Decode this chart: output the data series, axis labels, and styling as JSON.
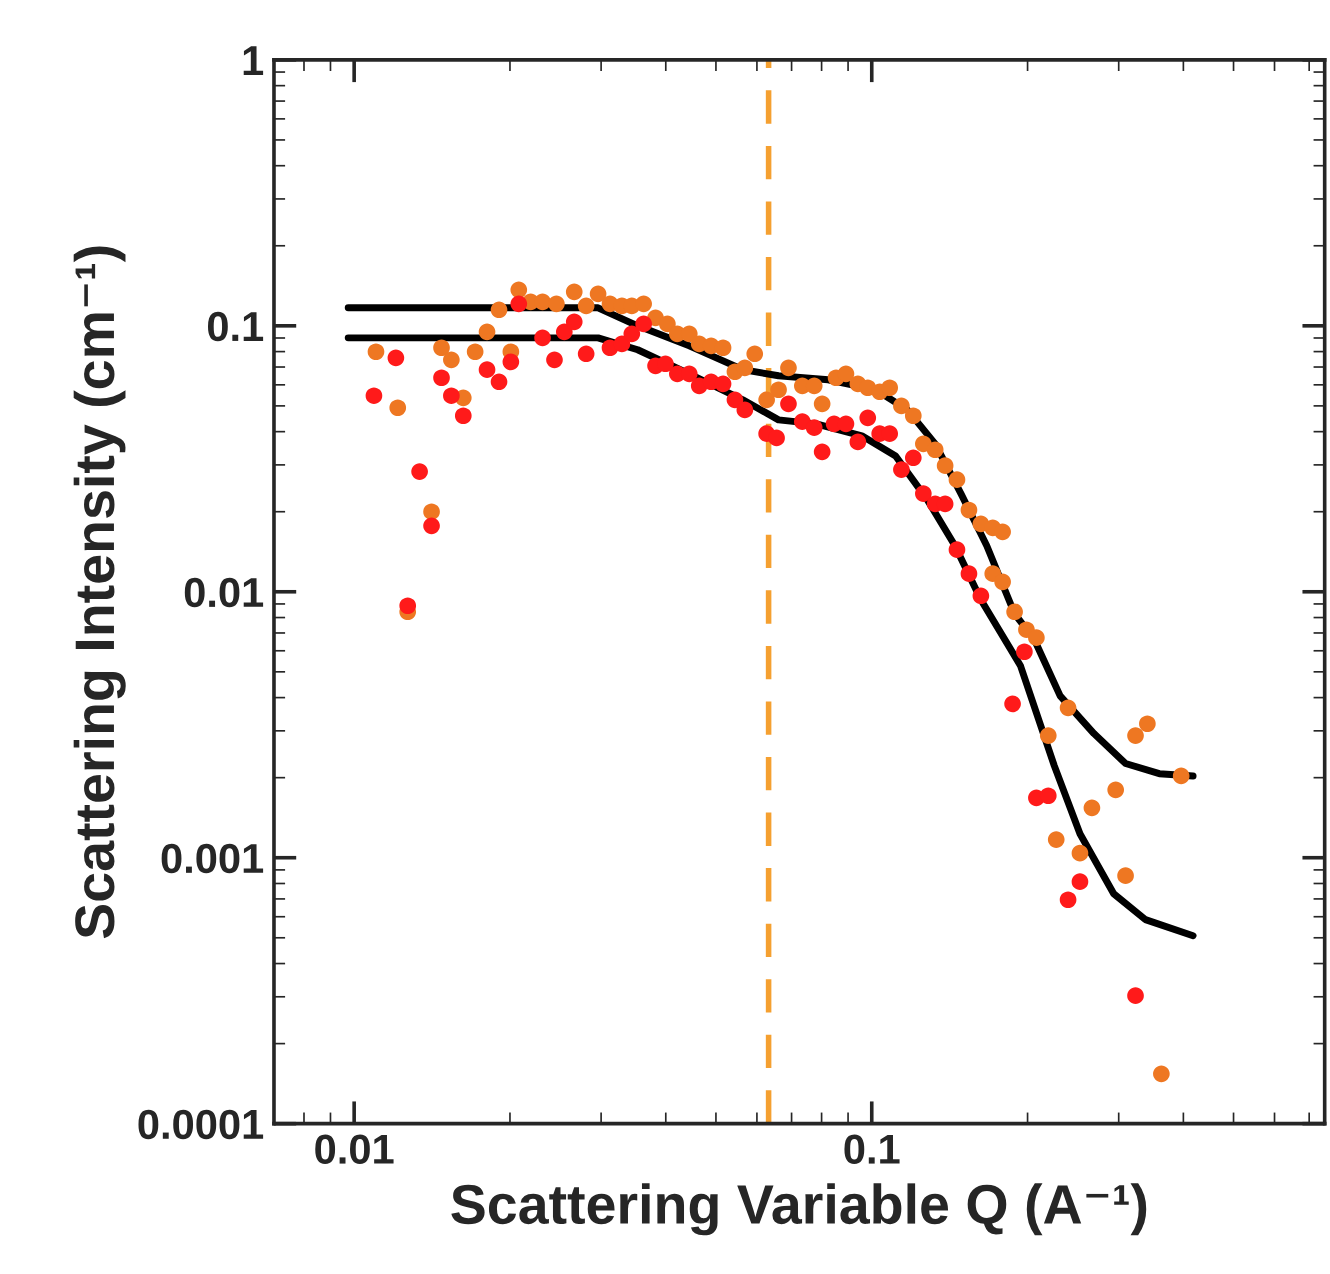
{
  "chart_data": {
    "type": "scatter",
    "xlabel": "Scattering Variable Q (A⁻¹)",
    "ylabel": "Scattering Intensity (cm⁻¹)",
    "log": "xy",
    "grid": false,
    "legend": false,
    "xlim": [
      0.007,
      0.75
    ],
    "ylim": [
      0.0001,
      1
    ],
    "xticks": [
      0.01,
      0.1
    ],
    "yticks": [
      1,
      0.1,
      0.01,
      0.001,
      0.0001
    ],
    "ref_lines": [
      {
        "axis": "x",
        "value": 0.0632,
        "color": "#f5a030",
        "line_style": "dashed"
      }
    ],
    "series": [
      {
        "color": "#ee7722",
        "marker": "circle",
        "x": [
          0.01102,
          0.01214,
          0.01269,
          0.01411,
          0.01475,
          0.01541,
          0.01625,
          0.01713,
          0.01806,
          0.01905,
          0.02008,
          0.0208,
          0.02193,
          0.02312,
          0.02459,
          0.02662,
          0.02807,
          0.0296,
          0.03121,
          0.03291,
          0.03439,
          0.03625,
          0.03822,
          0.04029,
          0.04211,
          0.04441,
          0.04642,
          0.04894,
          0.05161,
          0.05441,
          0.05686,
          0.05942,
          0.06265,
          0.06606,
          0.06904,
          0.07343,
          0.07742,
          0.0802,
          0.08532,
          0.08916,
          0.09401,
          0.09824,
          0.1036,
          0.1083,
          0.1141,
          0.1203,
          0.1258,
          0.1326,
          0.1386,
          0.1461,
          0.1541,
          0.1625,
          0.1713,
          0.179,
          0.1713,
          0.179,
          0.1888,
          0.199,
          0.208,
          0.2395,
          0.2193,
          0.3233,
          0.3408,
          0.3961,
          0.296,
          0.2663,
          0.2272,
          0.2525,
          0.3093,
          0.3627
        ],
        "values": [
          0.0799,
          0.0492,
          0.00841,
          0.02,
          0.0827,
          0.0745,
          0.0536,
          0.0799,
          0.0949,
          0.1149,
          0.0799,
          0.1366,
          0.1231,
          0.1231,
          0.121,
          0.1342,
          0.1189,
          0.1319,
          0.121,
          0.1189,
          0.1189,
          0.121,
          0.1072,
          0.1017,
          0.0933,
          0.0933,
          0.0855,
          0.0841,
          0.0827,
          0.0672,
          0.0695,
          0.0785,
          0.0527,
          0.0575,
          0.0695,
          0.0595,
          0.0595,
          0.0509,
          0.0638,
          0.066,
          0.0605,
          0.0585,
          0.0565,
          0.0585,
          0.05,
          0.0459,
          0.036,
          0.0342,
          0.0298,
          0.0264,
          0.0203,
          0.018,
          0.0174,
          0.0168,
          0.0117,
          0.0109,
          0.00841,
          0.0072,
          0.00672,
          0.00366,
          0.00288,
          0.00288,
          0.00319,
          0.00203,
          0.0018,
          0.00154,
          0.00117,
          0.00104,
          0.000856,
          0.000154
        ]
      },
      {
        "color": "#ff1a1a",
        "marker": "circle",
        "x": [
          0.01092,
          0.01204,
          0.01269,
          0.01338,
          0.01411,
          0.01475,
          0.01541,
          0.01625,
          0.01806,
          0.01905,
          0.02008,
          0.0208,
          0.02312,
          0.02438,
          0.02547,
          0.02662,
          0.02807,
          0.03121,
          0.03291,
          0.03439,
          0.03625,
          0.03822,
          0.03994,
          0.04211,
          0.04441,
          0.04642,
          0.04894,
          0.05161,
          0.05441,
          0.05686,
          0.06265,
          0.06548,
          0.06904,
          0.07343,
          0.07742,
          0.0802,
          0.08457,
          0.08916,
          0.09401,
          0.09824,
          0.1036,
          0.1083,
          0.1141,
          0.1203,
          0.1258,
          0.1326,
          0.1386,
          0.1461,
          0.1541,
          0.1625,
          0.1972,
          0.1871,
          0.208,
          0.2193,
          0.2525,
          0.2395,
          0.3233
        ],
        "values": [
          0.0546,
          0.0758,
          0.00886,
          0.0283,
          0.0177,
          0.0638,
          0.0546,
          0.0459,
          0.0684,
          0.0616,
          0.0732,
          0.121,
          0.0901,
          0.0745,
          0.0949,
          0.1035,
          0.0785,
          0.0827,
          0.0855,
          0.0933,
          0.1017,
          0.0707,
          0.072,
          0.066,
          0.066,
          0.0595,
          0.0616,
          0.0605,
          0.0527,
          0.0483,
          0.0393,
          0.0379,
          0.0509,
          0.0436,
          0.0414,
          0.0336,
          0.0428,
          0.0428,
          0.0366,
          0.0451,
          0.0393,
          0.0393,
          0.0288,
          0.0319,
          0.0234,
          0.0214,
          0.0214,
          0.0144,
          0.0117,
          0.00966,
          0.00595,
          0.00379,
          0.00168,
          0.00171,
          0.000813,
          0.000695,
          0.000303
        ]
      },
      {
        "type": "line",
        "color": "#000000",
        "line_style": "solid",
        "x": [
          0.00974,
          0.0296,
          0.0353,
          0.04441,
          0.05636,
          0.06606,
          0.08236,
          0.1018,
          0.1172,
          0.1326,
          0.1487,
          0.1668,
          0.1888,
          0.2062,
          0.2312,
          0.2687,
          0.3093,
          0.3594,
          0.4176
        ],
        "values": [
          0.1169,
          0.1169,
          0.1,
          0.0841,
          0.0684,
          0.0649,
          0.0627,
          0.0575,
          0.0483,
          0.036,
          0.0234,
          0.0149,
          0.00827,
          0.0066,
          0.00406,
          0.00293,
          0.00226,
          0.00207,
          0.00203
        ]
      },
      {
        "type": "line",
        "color": "#000000",
        "line_style": "solid",
        "x": [
          0.00974,
          0.0296,
          0.0353,
          0.04441,
          0.05636,
          0.06606,
          0.07811,
          0.09568,
          0.1112,
          0.128,
          0.1448,
          0.1625,
          0.1938,
          0.2252,
          0.2525,
          0.2934,
          0.3379,
          0.4176
        ],
        "values": [
          0.0901,
          0.0901,
          0.0813,
          0.066,
          0.0527,
          0.0443,
          0.0428,
          0.0386,
          0.0324,
          0.0222,
          0.0149,
          0.00933,
          0.00527,
          0.00222,
          0.00123,
          0.000732,
          0.000585,
          0.000509
        ]
      }
    ]
  }
}
